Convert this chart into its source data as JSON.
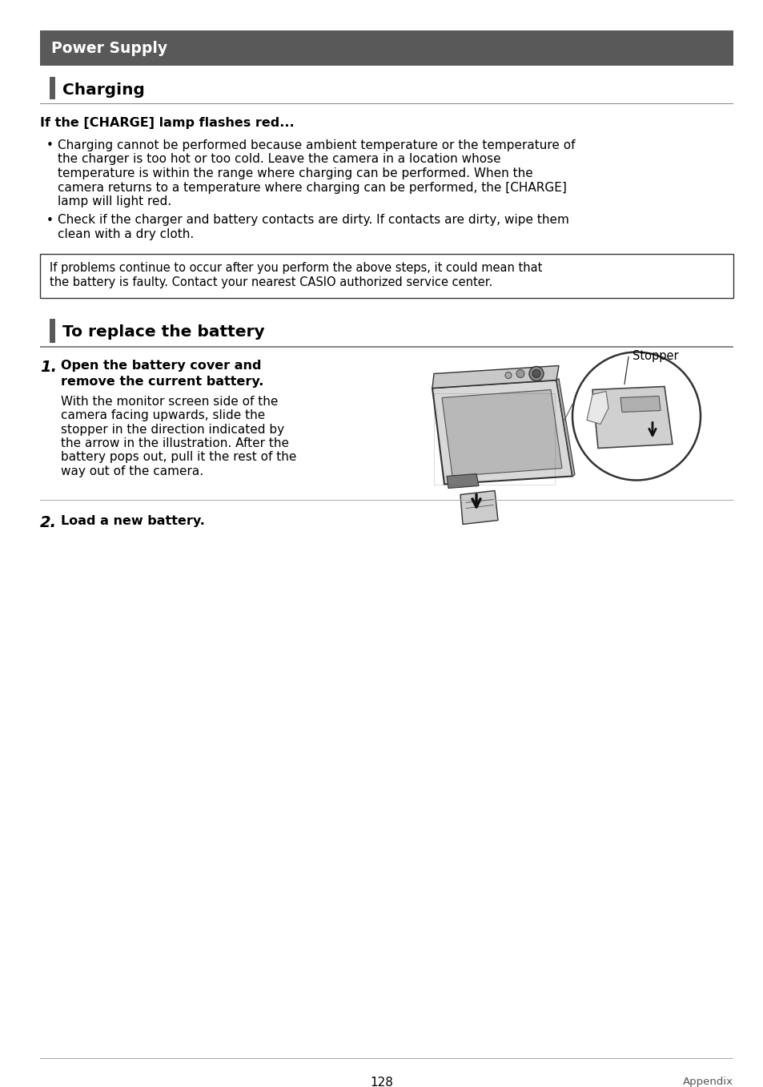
{
  "page_bg": "#ffffff",
  "header_bg": "#595959",
  "header_text": "Power Supply",
  "header_text_color": "#ffffff",
  "section1_title": "Charging",
  "section_bar_color": "#595959",
  "section_line_color": "#888888",
  "subsection1_title": "If the [CHARGE] lamp flashes red...",
  "bullet1_line1": "Charging cannot be performed because ambient temperature or the temperature of",
  "bullet1_line2": "the charger is too hot or too cold. Leave the camera in a location whose",
  "bullet1_line3": "temperature is within the range where charging can be performed. When the",
  "bullet1_line4": "camera returns to a temperature where charging can be performed, the [CHARGE]",
  "bullet1_line5": "lamp will light red.",
  "bullet2_line1": "Check if the charger and battery contacts are dirty. If contacts are dirty, wipe them",
  "bullet2_line2": "clean with a dry cloth.",
  "box_line1": "If problems continue to occur after you perform the above steps, it could mean that",
  "box_line2": "the battery is faulty. Contact your nearest CASIO authorized service center.",
  "section2_title": "To replace the battery",
  "step1_bold1": "Open the battery cover and",
  "step1_bold2": "remove the current battery.",
  "step1_text1": "With the monitor screen side of the",
  "step1_text2": "camera facing upwards, slide the",
  "step1_text3": "stopper in the direction indicated by",
  "step1_text4": "the arrow in the illustration. After the",
  "step1_text5": "battery pops out, pull it the rest of the",
  "step1_text6": "way out of the camera.",
  "stopper_label": "Stopper",
  "step2_bold": "Load a new battery.",
  "footer_line_color": "#aaaaaa",
  "page_number": "128",
  "footer_right": "Appendix"
}
